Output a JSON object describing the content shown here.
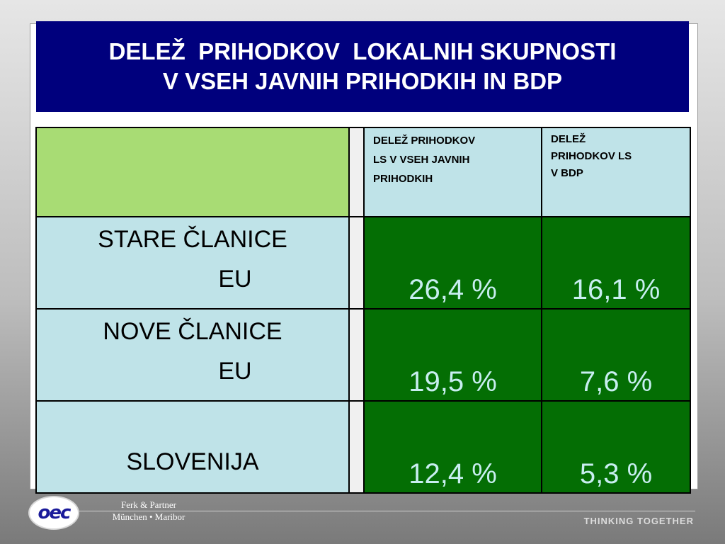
{
  "title": {
    "line1": "DELEŽ  PRIHODKOV  LOKALNIH SKUPNOSTI",
    "line2": "V VSEH JAVNIH PRIHODKIH IN BDP"
  },
  "table": {
    "columns": [
      {
        "line1": "DELEŽ  PRIHODKOV",
        "line2": "LS   V   VSEH JAVNIH",
        "line3": "PRIHODKIH"
      },
      {
        "line1": "DELEŽ",
        "line2": "PRIHODKOV  LS",
        "line3": "V   BDP"
      }
    ],
    "rows": [
      {
        "label_line1": "STARE   ČLANICE",
        "label_line2": "EU",
        "values": [
          "26,4 %",
          "16,1 %"
        ]
      },
      {
        "label_line1": "NOVE    ČLANICE",
        "label_line2": "EU",
        "values": [
          "19,5 %",
          "7,6 %"
        ]
      },
      {
        "label": "SLOVENIJA",
        "values": [
          "12,4 %",
          "5,3 %"
        ]
      }
    ]
  },
  "footer": {
    "logo_text": "oec",
    "company_line1": "Ferk & Partner",
    "company_line2": "München • Maribor",
    "tagline": "THINKING TOGETHER"
  },
  "colors": {
    "title_bg": "#00007d",
    "header_green": "#a8dc74",
    "light_cyan": "#bfe3e8",
    "value_green": "#046e04"
  }
}
